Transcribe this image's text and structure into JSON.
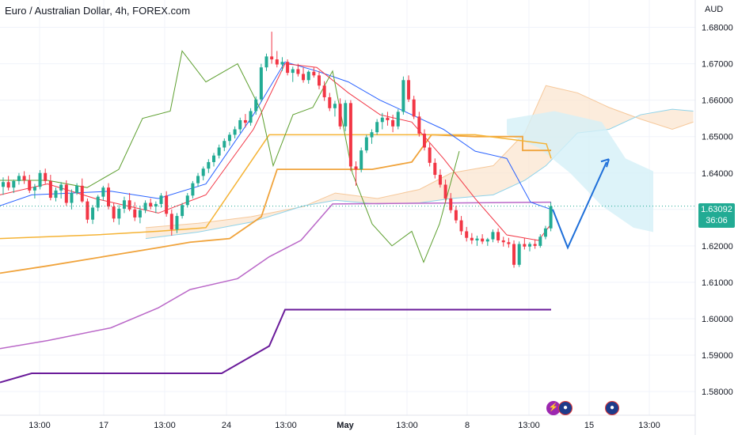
{
  "header": {
    "title": "Euro / Australian Dollar, 4h, FOREX.com",
    "currency": "AUD"
  },
  "price_tag": {
    "price": "1.63092",
    "countdown": "36:06"
  },
  "colors": {
    "up": "#22ab94",
    "down": "#f23645",
    "ichimoku_cloud_bull": "#fbe2c9",
    "ichimoku_cloud_bear": "#d4f0f8",
    "kijun": "#f0a33b",
    "tenkan": "#2962ff",
    "lagging": "#5d9f2f",
    "avg1": "#ba68c8",
    "avg2": "#6a1b9a",
    "forecast": "#1e6fd9"
  },
  "events": [
    {
      "name": "lightning-icon",
      "glyph": "⚡"
    },
    {
      "name": "au-flag-icon",
      "glyph": "●"
    },
    {
      "name": "au-flag-icon",
      "glyph": "●"
    }
  ],
  "chart_data": {
    "type": "candlestick",
    "y_ticks": [
      "1.68000",
      "1.67000",
      "1.66000",
      "1.65000",
      "1.64000",
      "1.63000",
      "1.62000",
      "1.61000",
      "1.60000",
      "1.59000",
      "1.58000"
    ],
    "x_ticks": [
      "13:00",
      "17",
      "13:00",
      "24",
      "13:00",
      "May",
      "13:00",
      "8",
      "13:00",
      "15",
      "13:00"
    ],
    "ylim": [
      1.5735,
      1.6875
    ],
    "grid": true,
    "candles": [
      [
        1.6362,
        1.6388,
        1.634,
        1.6375
      ],
      [
        1.6375,
        1.6392,
        1.6352,
        1.636
      ],
      [
        1.636,
        1.6382,
        1.6345,
        1.6378
      ],
      [
        1.6378,
        1.64,
        1.6368,
        1.6392
      ],
      [
        1.6392,
        1.6405,
        1.637,
        1.638
      ],
      [
        1.638,
        1.6395,
        1.6345,
        1.6352
      ],
      [
        1.6352,
        1.637,
        1.633,
        1.6362
      ],
      [
        1.6362,
        1.6408,
        1.6355,
        1.64
      ],
      [
        1.64,
        1.6412,
        1.637,
        1.6378
      ],
      [
        1.6378,
        1.6395,
        1.6325,
        1.6332
      ],
      [
        1.6332,
        1.636,
        1.6322,
        1.6352
      ],
      [
        1.6352,
        1.6375,
        1.633,
        1.6368
      ],
      [
        1.6368,
        1.638,
        1.631,
        1.6318
      ],
      [
        1.6318,
        1.6355,
        1.63,
        1.6345
      ],
      [
        1.6345,
        1.6372,
        1.634,
        1.6365
      ],
      [
        1.6365,
        1.6385,
        1.6318,
        1.6322
      ],
      [
        1.6322,
        1.633,
        1.6262,
        1.6272
      ],
      [
        1.6272,
        1.6312,
        1.626,
        1.6305
      ],
      [
        1.6305,
        1.634,
        1.6295,
        1.6335
      ],
      [
        1.6335,
        1.6365,
        1.6325,
        1.636
      ],
      [
        1.636,
        1.6372,
        1.63,
        1.6308
      ],
      [
        1.6308,
        1.6318,
        1.6265,
        1.6275
      ],
      [
        1.6275,
        1.6312,
        1.6258,
        1.6302
      ],
      [
        1.6302,
        1.6335,
        1.629,
        1.6325
      ],
      [
        1.6325,
        1.6345,
        1.6295,
        1.63
      ],
      [
        1.63,
        1.632,
        1.6268,
        1.6278
      ],
      [
        1.6278,
        1.631,
        1.6262,
        1.6298
      ],
      [
        1.6298,
        1.6325,
        1.629,
        1.6318
      ],
      [
        1.6318,
        1.633,
        1.63,
        1.6308
      ],
      [
        1.6308,
        1.6322,
        1.629,
        1.6315
      ],
      [
        1.6315,
        1.6345,
        1.6305,
        1.6338
      ],
      [
        1.6338,
        1.635,
        1.628,
        1.6288
      ],
      [
        1.6288,
        1.63,
        1.6228,
        1.6245
      ],
      [
        1.6245,
        1.629,
        1.6235,
        1.6282
      ],
      [
        1.6282,
        1.6318,
        1.6275,
        1.6312
      ],
      [
        1.6312,
        1.6345,
        1.6305,
        1.6338
      ],
      [
        1.6338,
        1.6378,
        1.633,
        1.6372
      ],
      [
        1.6372,
        1.64,
        1.6362,
        1.6392
      ],
      [
        1.6392,
        1.6418,
        1.638,
        1.6412
      ],
      [
        1.6412,
        1.6438,
        1.64,
        1.643
      ],
      [
        1.643,
        1.6455,
        1.6418,
        1.6448
      ],
      [
        1.6448,
        1.6478,
        1.644,
        1.647
      ],
      [
        1.647,
        1.6495,
        1.646,
        1.6488
      ],
      [
        1.6488,
        1.6512,
        1.6475,
        1.6505
      ],
      [
        1.6505,
        1.6528,
        1.6495,
        1.652
      ],
      [
        1.652,
        1.6552,
        1.651,
        1.6545
      ],
      [
        1.6545,
        1.6562,
        1.6525,
        1.6538
      ],
      [
        1.6538,
        1.6578,
        1.653,
        1.657
      ],
      [
        1.657,
        1.661,
        1.656,
        1.6602
      ],
      [
        1.6602,
        1.67,
        1.6595,
        1.669
      ],
      [
        1.669,
        1.6728,
        1.668,
        1.672
      ],
      [
        1.672,
        1.6788,
        1.67,
        1.6712
      ],
      [
        1.6712,
        1.6735,
        1.669,
        1.6698
      ],
      [
        1.6698,
        1.6718,
        1.668,
        1.6705
      ],
      [
        1.6705,
        1.6712,
        1.6668,
        1.6675
      ],
      [
        1.6675,
        1.6692,
        1.665,
        1.6685
      ],
      [
        1.6685,
        1.67,
        1.6665,
        1.6672
      ],
      [
        1.6672,
        1.669,
        1.6648,
        1.6655
      ],
      [
        1.6655,
        1.6682,
        1.6645,
        1.6678
      ],
      [
        1.6678,
        1.669,
        1.6662,
        1.6668
      ],
      [
        1.6668,
        1.668,
        1.663,
        1.664
      ],
      [
        1.664,
        1.6652,
        1.6598,
        1.6608
      ],
      [
        1.6608,
        1.662,
        1.657,
        1.6578
      ],
      [
        1.6578,
        1.6598,
        1.6555,
        1.659
      ],
      [
        1.659,
        1.6605,
        1.652,
        1.6528
      ],
      [
        1.6528,
        1.66,
        1.6515,
        1.6592
      ],
      [
        1.6592,
        1.66,
        1.6405,
        1.6418
      ],
      [
        1.6418,
        1.6432,
        1.6365,
        1.641
      ],
      [
        1.641,
        1.647,
        1.6402,
        1.6462
      ],
      [
        1.6462,
        1.6505,
        1.6455,
        1.6498
      ],
      [
        1.6498,
        1.652,
        1.648,
        1.6512
      ],
      [
        1.6512,
        1.6548,
        1.6505,
        1.654
      ],
      [
        1.654,
        1.6565,
        1.652,
        1.6552
      ],
      [
        1.6552,
        1.6568,
        1.653,
        1.6545
      ],
      [
        1.6545,
        1.656,
        1.6512,
        1.6528
      ],
      [
        1.6528,
        1.6575,
        1.652,
        1.6568
      ],
      [
        1.6568,
        1.6665,
        1.656,
        1.6655
      ],
      [
        1.6655,
        1.6668,
        1.6595,
        1.6602
      ],
      [
        1.6602,
        1.6612,
        1.6548,
        1.6555
      ],
      [
        1.6555,
        1.6568,
        1.65,
        1.6508
      ],
      [
        1.6508,
        1.652,
        1.6462,
        1.647
      ],
      [
        1.647,
        1.6482,
        1.6418,
        1.6428
      ],
      [
        1.6428,
        1.644,
        1.6385,
        1.6395
      ],
      [
        1.6395,
        1.641,
        1.636,
        1.6368
      ],
      [
        1.6368,
        1.6382,
        1.632,
        1.633
      ],
      [
        1.633,
        1.6345,
        1.629,
        1.6298
      ],
      [
        1.6298,
        1.631,
        1.6262,
        1.627
      ],
      [
        1.627,
        1.6282,
        1.623,
        1.624
      ],
      [
        1.624,
        1.6252,
        1.6212,
        1.6222
      ],
      [
        1.6222,
        1.6235,
        1.6205,
        1.6215
      ],
      [
        1.6215,
        1.6228,
        1.62,
        1.622
      ],
      [
        1.622,
        1.6232,
        1.6205,
        1.6212
      ],
      [
        1.6212,
        1.6222,
        1.62,
        1.6218
      ],
      [
        1.6218,
        1.6245,
        1.621,
        1.6238
      ],
      [
        1.6238,
        1.6248,
        1.6208,
        1.6215
      ],
      [
        1.6215,
        1.6225,
        1.6198,
        1.621
      ],
      [
        1.621,
        1.6222,
        1.6195,
        1.6205
      ],
      [
        1.6205,
        1.6215,
        1.614,
        1.6148
      ],
      [
        1.6148,
        1.6212,
        1.6142,
        1.6205
      ],
      [
        1.6205,
        1.6222,
        1.619,
        1.6198
      ],
      [
        1.6198,
        1.621,
        1.6185,
        1.6205
      ],
      [
        1.6205,
        1.6218,
        1.6192,
        1.62
      ],
      [
        1.62,
        1.6232,
        1.6195,
        1.6225
      ],
      [
        1.6225,
        1.6255,
        1.6218,
        1.6248
      ],
      [
        1.6248,
        1.632,
        1.624,
        1.6309
      ]
    ],
    "series": [
      {
        "name": "",
        "kind": "cloud_a",
        "points": [
          [
            0,
            1.625
          ],
          [
            10,
            1.6262
          ],
          [
            20,
            1.628
          ],
          [
            30,
            1.6308
          ],
          [
            36,
            1.6345
          ],
          [
            44,
            1.633
          ],
          [
            52,
            1.6355
          ],
          [
            58,
            1.64
          ],
          [
            66,
            1.642
          ],
          [
            72,
            1.651
          ],
          [
            76,
            1.664
          ],
          [
            82,
            1.662
          ],
          [
            88,
            1.658
          ],
          [
            94,
            1.6548
          ],
          [
            100,
            1.652
          ],
          [
            104,
            1.654
          ]
        ]
      },
      {
        "name": "",
        "kind": "cloud_b",
        "points": [
          [
            0,
            1.622
          ],
          [
            10,
            1.6238
          ],
          [
            20,
            1.6265
          ],
          [
            30,
            1.631
          ],
          [
            36,
            1.6325
          ],
          [
            44,
            1.6315
          ],
          [
            52,
            1.6318
          ],
          [
            58,
            1.633
          ],
          [
            66,
            1.634
          ],
          [
            72,
            1.638
          ],
          [
            76,
            1.642
          ],
          [
            82,
            1.651
          ],
          [
            88,
            1.652
          ],
          [
            94,
            1.656
          ],
          [
            100,
            1.6575
          ],
          [
            104,
            1.657
          ]
        ]
      }
    ]
  }
}
